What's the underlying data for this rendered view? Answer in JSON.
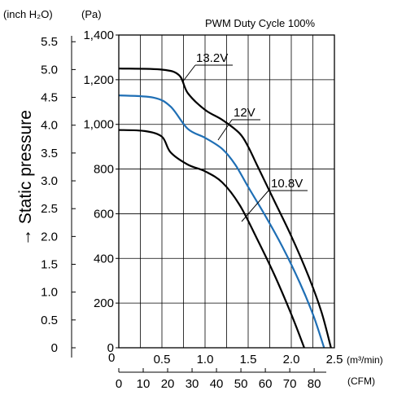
{
  "chart_data": {
    "type": "line",
    "title": "PWM Duty Cycle 100%",
    "ylabel": "→ Static pressure",
    "y_units": {
      "inch": "(inch H₂O)",
      "pa": "(Pa)"
    },
    "x_units": {
      "m3": "(m³/min)",
      "cfm": "(CFM)"
    },
    "y_pa_ticks": [
      "0",
      "200",
      "400",
      "600",
      "800",
      "1,000",
      "1,200",
      "1,400"
    ],
    "y_pa_tick_values": [
      0,
      200,
      400,
      600,
      800,
      1000,
      1200,
      1400
    ],
    "y_inch_ticks": [
      "0",
      "0.5",
      "1.0",
      "1.5",
      "2.0",
      "2.5",
      "3.0",
      "3.5",
      "4.0",
      "4.5",
      "5.0",
      "5.5"
    ],
    "y_inch_tick_values": [
      0,
      0.5,
      1.0,
      1.5,
      2.0,
      2.5,
      3.0,
      3.5,
      4.0,
      4.5,
      5.0,
      5.5
    ],
    "x_m3_ticks": [
      "0.5",
      "1.0",
      "1.5",
      "2.0",
      "2.5"
    ],
    "x_m3_tick_values": [
      0.5,
      1.0,
      1.5,
      2.0,
      2.5
    ],
    "x_cfm_ticks": [
      "0",
      "10",
      "20",
      "30",
      "40",
      "50",
      "60",
      "70",
      "80"
    ],
    "x_cfm_tick_values": [
      0,
      10,
      20,
      30,
      40,
      50,
      60,
      70,
      80
    ],
    "x_zero_label": "0",
    "xlim": [
      0,
      2.5
    ],
    "ylim": [
      0,
      1400
    ],
    "grid": true,
    "series": [
      {
        "name": "13.2V",
        "color": "#000000",
        "x": [
          0,
          0.5,
          0.7,
          0.8,
          1.0,
          1.2,
          1.4,
          1.5,
          1.6,
          1.8,
          2.0,
          2.2,
          2.35,
          2.46
        ],
        "y": [
          1250,
          1245,
          1220,
          1140,
          1065,
          1020,
          960,
          900,
          820,
          660,
          500,
          320,
          160,
          0
        ]
      },
      {
        "name": "12V",
        "color": "#1f6fb5",
        "x": [
          0,
          0.4,
          0.6,
          0.8,
          1.0,
          1.2,
          1.35,
          1.5,
          1.7,
          1.9,
          2.1,
          2.26,
          2.38
        ],
        "y": [
          1130,
          1120,
          1080,
          980,
          940,
          890,
          820,
          720,
          590,
          450,
          290,
          140,
          0
        ]
      },
      {
        "name": "10.8V",
        "color": "#000000",
        "x": [
          0,
          0.3,
          0.5,
          0.6,
          0.8,
          1.0,
          1.2,
          1.4,
          1.6,
          1.8,
          2.0,
          2.15
        ],
        "y": [
          975,
          970,
          945,
          875,
          820,
          790,
          740,
          640,
          490,
          330,
          150,
          0
        ]
      }
    ]
  }
}
